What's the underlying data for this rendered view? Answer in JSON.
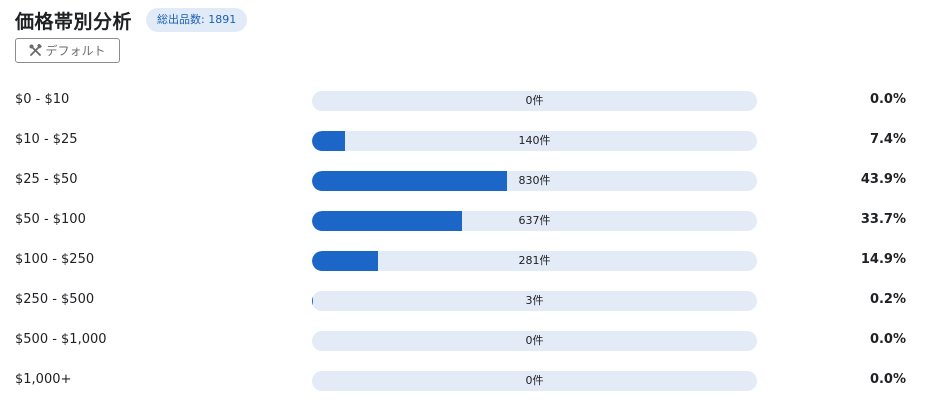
{
  "header": {
    "title": "価格帯別分析",
    "badge": "総出品数: 1891"
  },
  "toolbar": {
    "default_label": "デフォルト",
    "default_icon": "tools-icon"
  },
  "colors": {
    "bar_fill": "#1b66c6",
    "bar_track": "#e3ebf6",
    "badge_bg": "#e1ebf7",
    "badge_text": "#1a5fb4"
  },
  "price_bands": [
    {
      "range": "$0 - $10",
      "count": "0件",
      "percent": "0.0%",
      "share": 0.0
    },
    {
      "range": "$10 - $25",
      "count": "140件",
      "percent": "7.4%",
      "share": 7.4
    },
    {
      "range": "$25 - $50",
      "count": "830件",
      "percent": "43.9%",
      "share": 43.9
    },
    {
      "range": "$50 - $100",
      "count": "637件",
      "percent": "33.7%",
      "share": 33.7
    },
    {
      "range": "$100 - $250",
      "count": "281件",
      "percent": "14.9%",
      "share": 14.9
    },
    {
      "range": "$250 - $500",
      "count": "3件",
      "percent": "0.2%",
      "share": 0.2
    },
    {
      "range": "$500 - $1,000",
      "count": "0件",
      "percent": "0.0%",
      "share": 0.0
    },
    {
      "range": "$1,000+",
      "count": "0件",
      "percent": "0.0%",
      "share": 0.0
    }
  ]
}
